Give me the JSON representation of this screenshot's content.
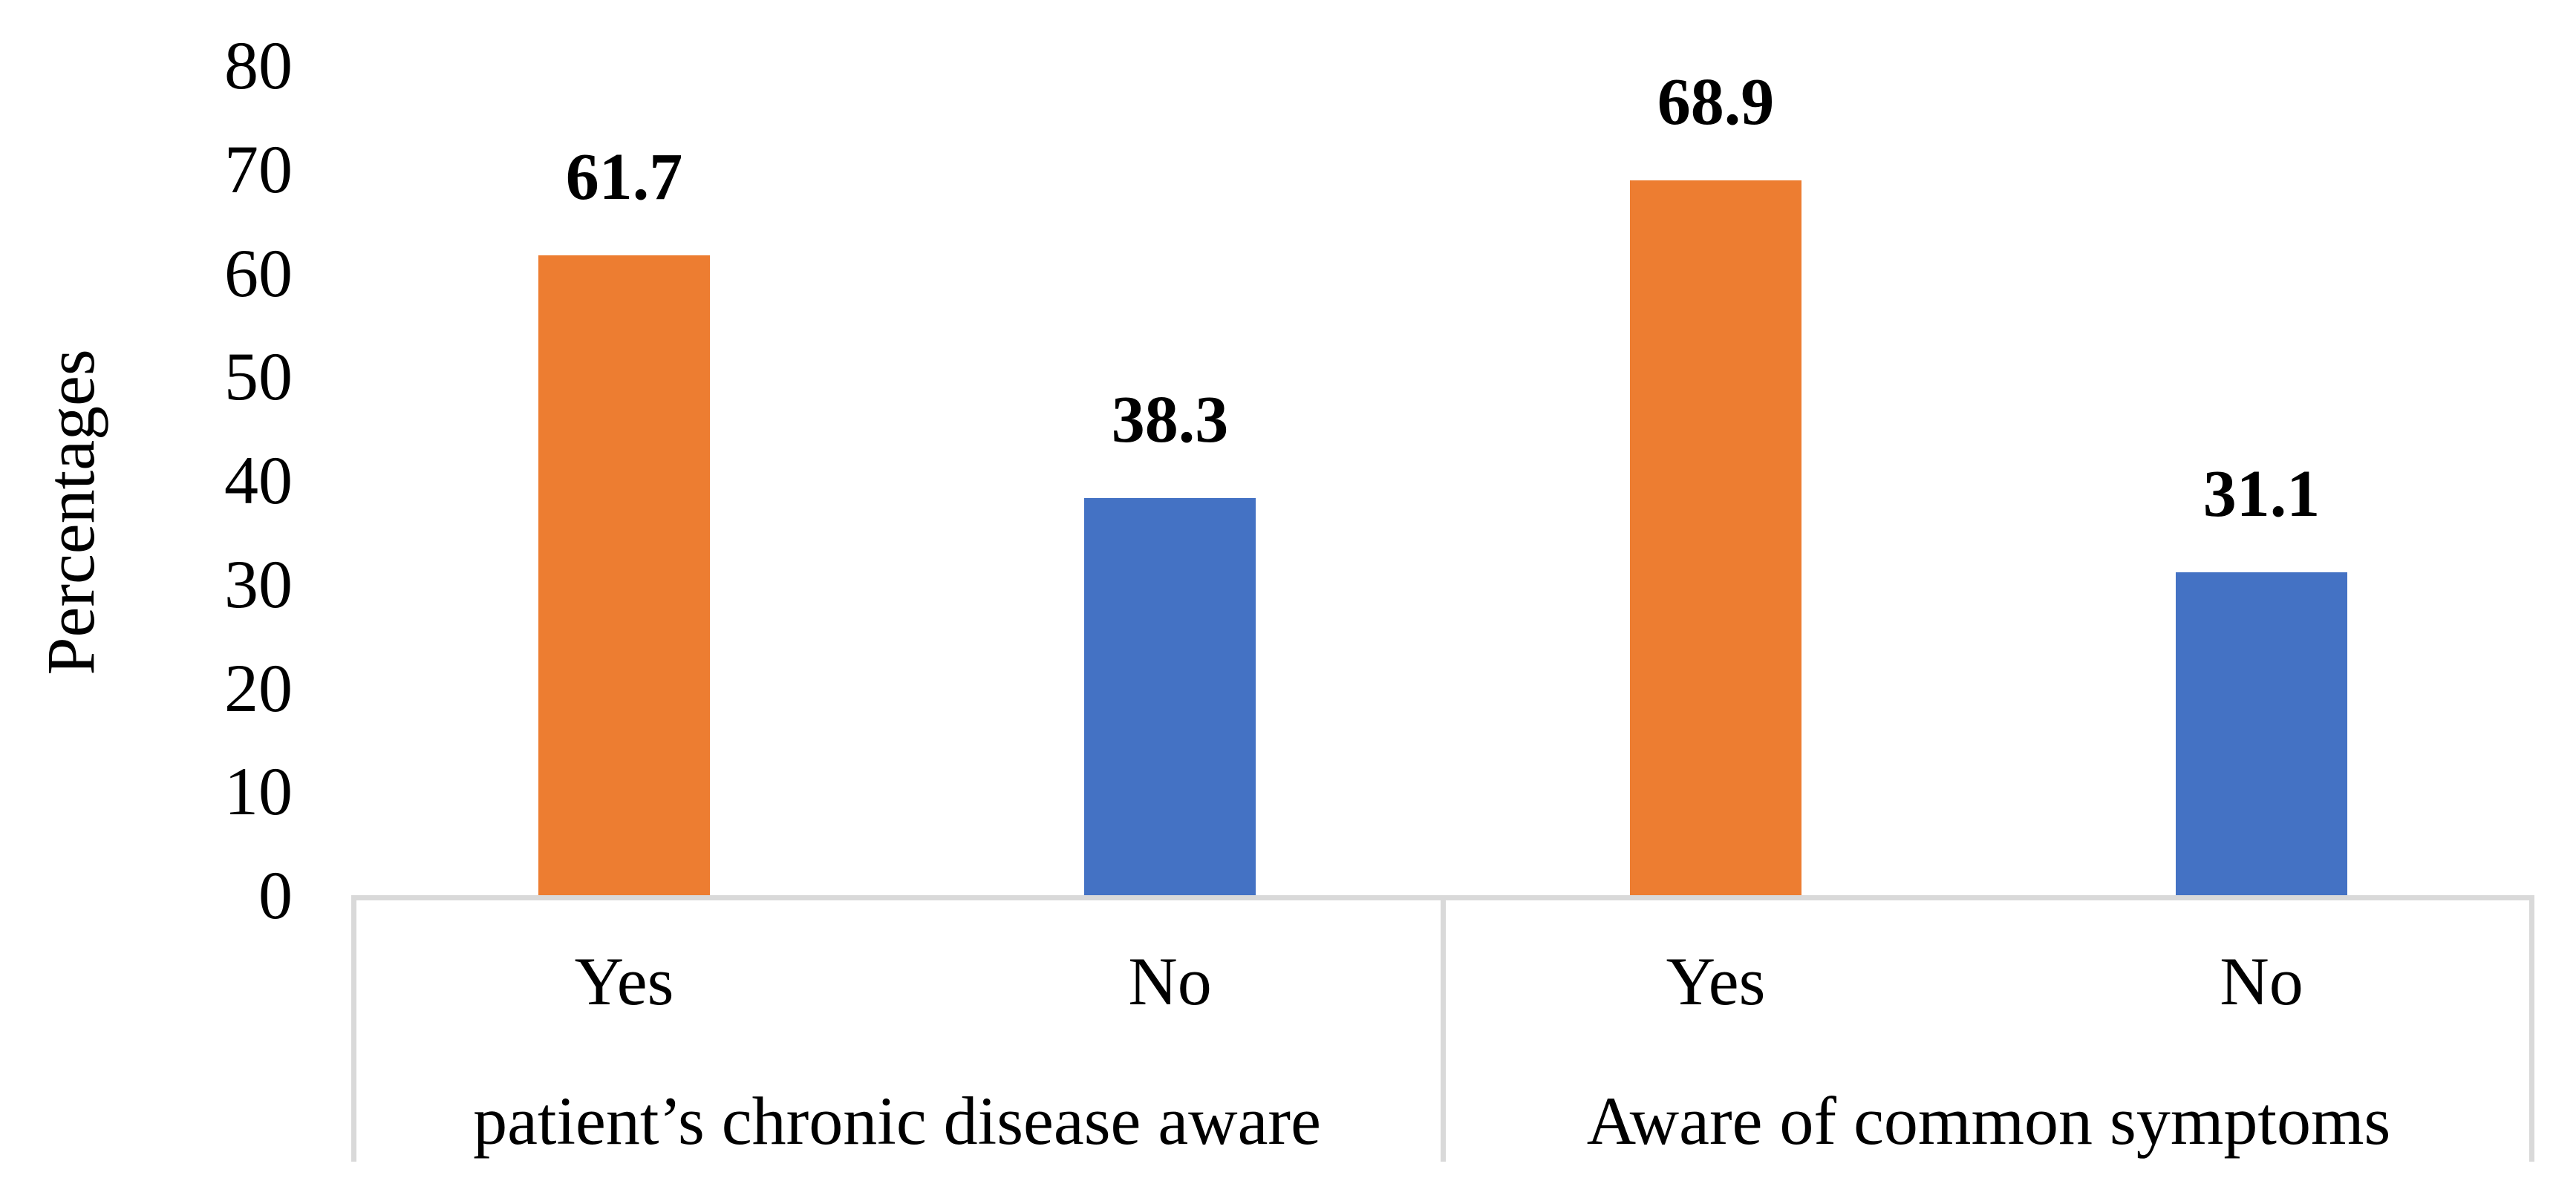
{
  "chart_data": {
    "type": "bar",
    "title": "",
    "xlabel": "",
    "ylabel": "Percentages",
    "ylim": [
      0,
      80
    ],
    "yticks": [
      0,
      10,
      20,
      30,
      40,
      50,
      60,
      70,
      80
    ],
    "grid": false,
    "legend": "none",
    "categories": [
      "Yes",
      "No",
      "Yes",
      "No"
    ],
    "values": [
      61.7,
      38.3,
      68.9,
      31.1
    ],
    "group_labels": [
      "patient’s chronic disease aware",
      "Aware of common symptoms"
    ],
    "groups": [
      {
        "label": "patient’s chronic disease aware",
        "bars": [
          {
            "category": "Yes",
            "value": 61.7,
            "data_label": "61.7",
            "color": "#ED7D31"
          },
          {
            "category": "No",
            "value": 38.3,
            "data_label": "38.3",
            "color": "#4472C4"
          }
        ]
      },
      {
        "label": "Aware of common symptoms",
        "bars": [
          {
            "category": "Yes",
            "value": 68.9,
            "data_label": "68.9",
            "color": "#ED7D31"
          },
          {
            "category": "No",
            "value": 31.1,
            "data_label": "31.1",
            "color": "#4472C4"
          }
        ]
      }
    ],
    "colors": {
      "yes_bar": "#ED7D31",
      "no_bar": "#4472C4",
      "axis_line": "#D9D9D9",
      "text": "#000000",
      "background": "#FFFFFF"
    }
  }
}
